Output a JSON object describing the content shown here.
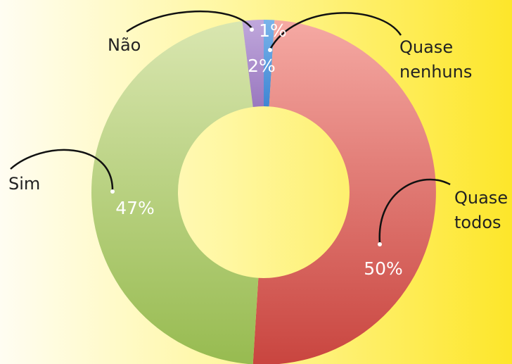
{
  "chart_data": {
    "type": "donut",
    "categories": [
      "Quase nenhuns",
      "Quase todos",
      "Sim",
      "Não"
    ],
    "values": [
      1,
      50,
      47,
      2
    ],
    "value_labels": [
      "1%",
      "50%",
      "47%",
      "2%"
    ],
    "colors": [
      [
        "#7ab4ea",
        "#3f86d4"
      ],
      [
        "#f5a9a3",
        "#c9453f"
      ],
      [
        "#d9e6b0",
        "#97bb50"
      ],
      [
        "#c0a8dc",
        "#9a78bf"
      ]
    ]
  }
}
